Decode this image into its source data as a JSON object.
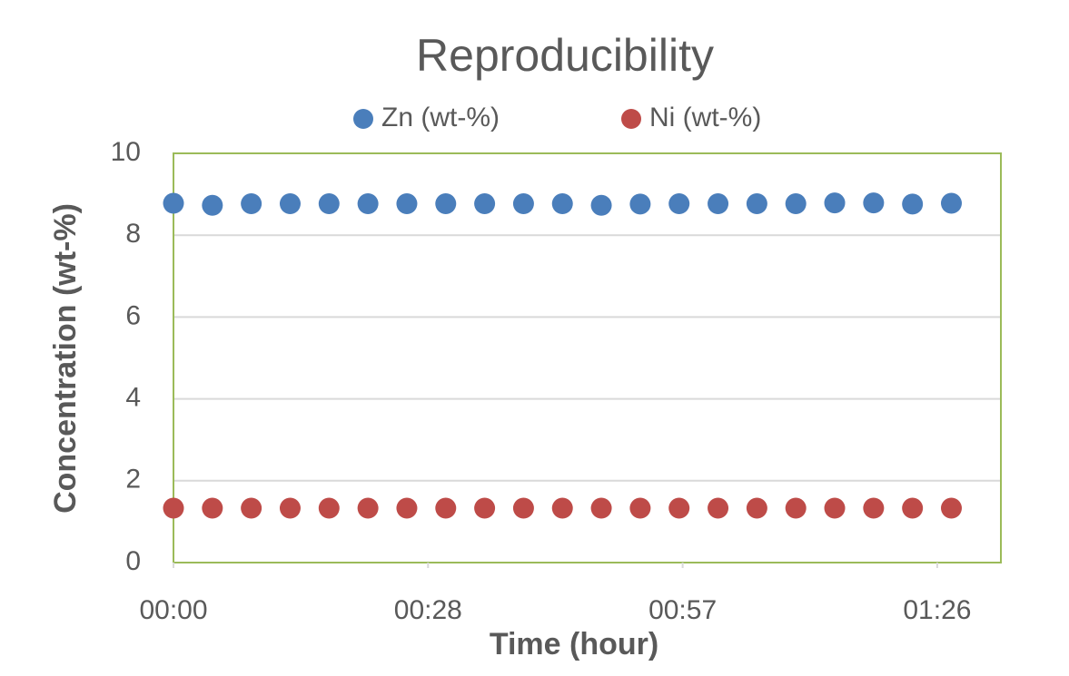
{
  "chart_data": {
    "type": "scatter",
    "title": "Reproducibility",
    "x_label": "Time (hour)",
    "y_label": "Concentration (wt-%)",
    "x": [
      0,
      4.4,
      8.8,
      13.2,
      17.6,
      22,
      26.4,
      30.8,
      35.2,
      39.6,
      44,
      48.4,
      52.8,
      57.2,
      61.6,
      66,
      70.4,
      74.8,
      79.2,
      83.6,
      88
    ],
    "series": [
      {
        "name": "Zn (wt-%)",
        "color": "#4a7ebb",
        "values": [
          8.78,
          8.73,
          8.77,
          8.77,
          8.77,
          8.77,
          8.77,
          8.77,
          8.77,
          8.77,
          8.77,
          8.73,
          8.76,
          8.77,
          8.77,
          8.77,
          8.77,
          8.79,
          8.79,
          8.76,
          8.78
        ]
      },
      {
        "name": "Ni (wt-%)",
        "color": "#be4b48",
        "values": [
          1.33,
          1.33,
          1.33,
          1.33,
          1.33,
          1.33,
          1.33,
          1.33,
          1.33,
          1.33,
          1.33,
          1.33,
          1.33,
          1.33,
          1.33,
          1.33,
          1.33,
          1.33,
          1.33,
          1.33,
          1.33
        ]
      }
    ],
    "xlim": [
      0,
      93.6
    ],
    "xticks": [
      {
        "value": 0,
        "label": "00:00"
      },
      {
        "value": 28.8,
        "label": "00:28"
      },
      {
        "value": 57.6,
        "label": "00:57"
      },
      {
        "value": 86.4,
        "label": "01:26"
      }
    ],
    "ylim": [
      0,
      10
    ],
    "yticks": [
      0,
      2,
      4,
      6,
      8,
      10
    ],
    "grid": true,
    "legend": "top"
  }
}
